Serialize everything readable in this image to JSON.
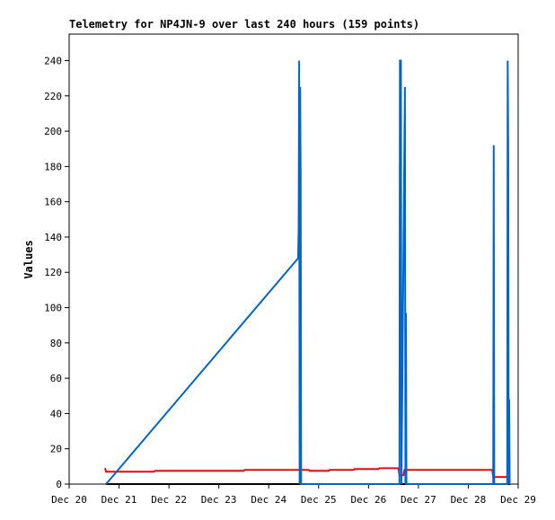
{
  "chart_data": {
    "type": "line",
    "title": "Telemetry for NP4JN-9 over last 240 hours (159 points)",
    "y_label": "Values",
    "xlim": [
      20,
      29
    ],
    "xticks": [
      {
        "value": 20,
        "label": "Dec 20"
      },
      {
        "value": 21,
        "label": "Dec 21"
      },
      {
        "value": 22,
        "label": "Dec 22"
      },
      {
        "value": 23,
        "label": "Dec 23"
      },
      {
        "value": 24,
        "label": "Dec 24"
      },
      {
        "value": 25,
        "label": "Dec 25"
      },
      {
        "value": 26,
        "label": "Dec 26"
      },
      {
        "value": 27,
        "label": "Dec 27"
      },
      {
        "value": 28,
        "label": "Dec 28"
      },
      {
        "value": 29,
        "label": "Dec 29"
      }
    ],
    "ylim": [
      0,
      255
    ],
    "yticks": [
      0,
      20,
      40,
      60,
      80,
      100,
      120,
      140,
      160,
      180,
      200,
      220,
      240
    ],
    "series": [
      {
        "color": "#000000",
        "x": [
          20.74,
          28.84
        ],
        "values": [
          0,
          0
        ]
      },
      {
        "color": "#ff0000",
        "x": [
          20.72,
          20.74,
          21.7,
          21.72,
          23.5,
          23.52,
          24.8,
          24.82,
          25.2,
          25.22,
          25.7,
          25.72,
          26.2,
          26.22,
          26.6,
          26.62,
          26.7,
          26.72,
          28.48,
          28.5,
          28.82
        ],
        "values": [
          9,
          7,
          7,
          7.5,
          7.5,
          8,
          8,
          7.5,
          7.5,
          8,
          8,
          8.5,
          8.5,
          9,
          9,
          5,
          5,
          8,
          8,
          4,
          4
        ]
      },
      {
        "color": "#0066cc",
        "x": [
          20.74,
          24.59,
          24.6,
          24.61,
          24.62,
          24.63,
          24.64,
          24.65,
          26.62,
          26.63,
          26.65,
          26.66,
          26.73,
          26.74,
          26.75,
          26.76,
          28.5,
          28.51,
          28.52,
          28.78,
          28.79,
          28.8,
          28.81,
          28.82,
          28.83
        ],
        "values": [
          0,
          128,
          145,
          240,
          0,
          225,
          177,
          0,
          0,
          240,
          240,
          0,
          225,
          0,
          97,
          0,
          0,
          192,
          0,
          0,
          240,
          192,
          0,
          48,
          0
        ]
      }
    ]
  }
}
